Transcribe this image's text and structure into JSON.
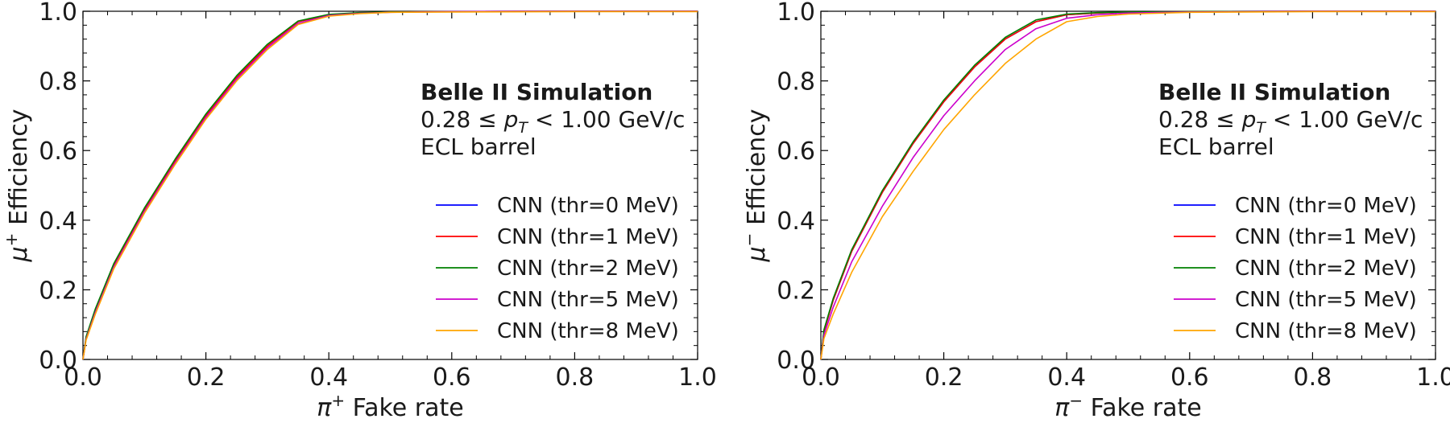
{
  "chart_data": [
    {
      "type": "line",
      "xlabel_symbol": "π",
      "xlabel_sup": "+",
      "xlabel_rest": " Fake rate",
      "ylabel_symbol": "μ",
      "ylabel_sup": "+",
      "ylabel_rest": " Efficiency",
      "xlim": [
        0,
        1
      ],
      "ylim": [
        0,
        1
      ],
      "xticks": [
        "0.0",
        "0.2",
        "0.4",
        "0.6",
        "0.8",
        "1.0"
      ],
      "yticks": [
        "0.0",
        "0.2",
        "0.4",
        "0.6",
        "0.8",
        "1.0"
      ],
      "annotation": {
        "title": "Belle II Simulation",
        "range_low": "0.28",
        "range_mid": " ≤ ",
        "range_var": "p",
        "range_sub": "T",
        "range_high": " <  1.00 GeV/c",
        "region": "ECL barrel"
      },
      "legend_location": "center-right",
      "series": [
        {
          "name": "CNN (thr=0 MeV)",
          "color": "#0000ff",
          "x": [
            0,
            0.005,
            0.02,
            0.05,
            0.1,
            0.15,
            0.2,
            0.25,
            0.3,
            0.35,
            0.4,
            0.45,
            0.5,
            0.6,
            0.8,
            1.0
          ],
          "y": [
            0,
            0.06,
            0.14,
            0.27,
            0.43,
            0.57,
            0.7,
            0.81,
            0.9,
            0.97,
            0.99,
            0.995,
            0.998,
            0.999,
            1.0,
            1.0
          ]
        },
        {
          "name": "CNN (thr=1 MeV)",
          "color": "#ff0000",
          "x": [
            0,
            0.005,
            0.02,
            0.05,
            0.1,
            0.15,
            0.2,
            0.25,
            0.3,
            0.35,
            0.4,
            0.45,
            0.5,
            0.6,
            0.8,
            1.0
          ],
          "y": [
            0,
            0.06,
            0.14,
            0.27,
            0.43,
            0.57,
            0.7,
            0.81,
            0.9,
            0.97,
            0.99,
            0.995,
            0.998,
            0.999,
            1.0,
            1.0
          ]
        },
        {
          "name": "CNN (thr=2 MeV)",
          "color": "#008000",
          "x": [
            0,
            0.005,
            0.02,
            0.05,
            0.1,
            0.15,
            0.2,
            0.25,
            0.3,
            0.35,
            0.4,
            0.45,
            0.5,
            0.6,
            0.8,
            1.0
          ],
          "y": [
            0,
            0.065,
            0.145,
            0.275,
            0.435,
            0.575,
            0.705,
            0.815,
            0.905,
            0.972,
            0.991,
            0.996,
            0.998,
            0.999,
            1.0,
            1.0
          ]
        },
        {
          "name": "CNN (thr=5 MeV)",
          "color": "#cc00cc",
          "x": [
            0,
            0.005,
            0.02,
            0.05,
            0.1,
            0.15,
            0.2,
            0.25,
            0.3,
            0.35,
            0.4,
            0.45,
            0.5,
            0.6,
            0.8,
            1.0
          ],
          "y": [
            0,
            0.058,
            0.135,
            0.265,
            0.425,
            0.565,
            0.695,
            0.805,
            0.895,
            0.965,
            0.988,
            0.994,
            0.997,
            0.999,
            1.0,
            1.0
          ]
        },
        {
          "name": "CNN (thr=8 MeV)",
          "color": "#ffa500",
          "x": [
            0,
            0.005,
            0.02,
            0.05,
            0.1,
            0.15,
            0.2,
            0.25,
            0.3,
            0.35,
            0.4,
            0.45,
            0.5,
            0.6,
            0.8,
            1.0
          ],
          "y": [
            0,
            0.055,
            0.13,
            0.26,
            0.42,
            0.56,
            0.69,
            0.8,
            0.89,
            0.962,
            0.986,
            0.993,
            0.997,
            0.998,
            0.999,
            0.999
          ]
        }
      ]
    },
    {
      "type": "line",
      "xlabel_symbol": "π",
      "xlabel_sup": "−",
      "xlabel_rest": " Fake rate",
      "ylabel_symbol": "μ",
      "ylabel_sup": "−",
      "ylabel_rest": " Efficiency",
      "xlim": [
        0,
        1
      ],
      "ylim": [
        0,
        1
      ],
      "xticks": [
        "0.0",
        "0.2",
        "0.4",
        "0.6",
        "0.8",
        "1.0"
      ],
      "yticks": [
        "0.0",
        "0.2",
        "0.4",
        "0.6",
        "0.8",
        "1.0"
      ],
      "annotation": {
        "title": "Belle II Simulation",
        "range_low": "0.28",
        "range_mid": " ≤ ",
        "range_var": "p",
        "range_sub": "T",
        "range_high": " <  1.00 GeV/c",
        "region": "ECL barrel"
      },
      "legend_location": "center-right",
      "series": [
        {
          "name": "CNN (thr=0 MeV)",
          "color": "#0000ff",
          "x": [
            0,
            0.005,
            0.02,
            0.05,
            0.1,
            0.15,
            0.2,
            0.25,
            0.3,
            0.35,
            0.4,
            0.45,
            0.5,
            0.6,
            0.8,
            1.0
          ],
          "y": [
            0,
            0.08,
            0.17,
            0.31,
            0.48,
            0.62,
            0.74,
            0.84,
            0.92,
            0.97,
            0.99,
            0.995,
            0.998,
            0.999,
            1.0,
            1.0
          ]
        },
        {
          "name": "CNN (thr=1 MeV)",
          "color": "#ff0000",
          "x": [
            0,
            0.005,
            0.02,
            0.05,
            0.1,
            0.15,
            0.2,
            0.25,
            0.3,
            0.35,
            0.4,
            0.45,
            0.5,
            0.6,
            0.8,
            1.0
          ],
          "y": [
            0,
            0.08,
            0.17,
            0.31,
            0.48,
            0.62,
            0.74,
            0.84,
            0.92,
            0.97,
            0.99,
            0.995,
            0.998,
            0.999,
            1.0,
            1.0
          ]
        },
        {
          "name": "CNN (thr=2 MeV)",
          "color": "#008000",
          "x": [
            0,
            0.005,
            0.02,
            0.05,
            0.1,
            0.15,
            0.2,
            0.25,
            0.3,
            0.35,
            0.4,
            0.45,
            0.5,
            0.6,
            0.8,
            1.0
          ],
          "y": [
            0,
            0.085,
            0.175,
            0.315,
            0.485,
            0.625,
            0.745,
            0.845,
            0.925,
            0.975,
            0.992,
            0.996,
            0.998,
            0.999,
            1.0,
            1.0
          ]
        },
        {
          "name": "CNN (thr=5 MeV)",
          "color": "#cc00cc",
          "x": [
            0,
            0.005,
            0.02,
            0.05,
            0.1,
            0.15,
            0.2,
            0.25,
            0.3,
            0.35,
            0.4,
            0.45,
            0.5,
            0.6,
            0.8,
            1.0
          ],
          "y": [
            0,
            0.07,
            0.15,
            0.28,
            0.44,
            0.58,
            0.7,
            0.8,
            0.89,
            0.95,
            0.98,
            0.99,
            0.995,
            0.998,
            1.0,
            1.0
          ]
        },
        {
          "name": "CNN (thr=8 MeV)",
          "color": "#ffa500",
          "x": [
            0,
            0.005,
            0.02,
            0.05,
            0.1,
            0.15,
            0.2,
            0.25,
            0.3,
            0.35,
            0.4,
            0.45,
            0.5,
            0.6,
            0.8,
            1.0
          ],
          "y": [
            0,
            0.06,
            0.13,
            0.25,
            0.41,
            0.54,
            0.66,
            0.76,
            0.85,
            0.92,
            0.97,
            0.985,
            0.992,
            0.997,
            0.999,
            0.999
          ]
        }
      ]
    }
  ]
}
